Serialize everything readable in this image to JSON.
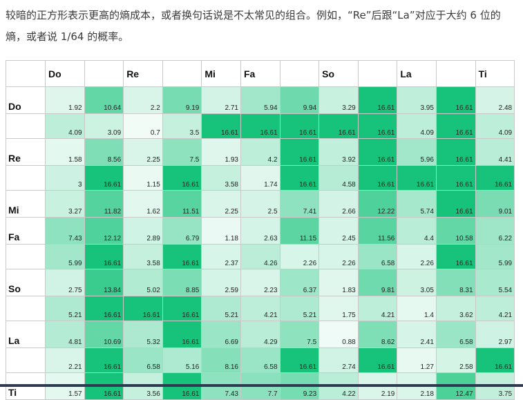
{
  "intro_text": "较暗的正方形表示更高的熵成本，或者换句话说是不太常见的组合。例如，“Re”后跟“La”对应于大约 6 位的熵，或者说 1/64 的概率。",
  "color_scale": {
    "low": "#ffffff",
    "high": "#17c37b",
    "max_value": 16.61
  },
  "chart_data": {
    "type": "heatmap",
    "title": "",
    "column_headers": [
      "Do",
      "",
      "Re",
      "",
      "Mi",
      "Fa",
      "",
      "So",
      "",
      "La",
      "",
      "Ti"
    ],
    "row_headers": [
      "Do",
      "",
      "Re",
      "",
      "Mi",
      "Fa",
      "",
      "So",
      "",
      "La",
      "",
      "Ti"
    ],
    "values": [
      [
        1.92,
        10.64,
        2.2,
        9.19,
        2.71,
        5.94,
        9.94,
        3.29,
        16.61,
        3.95,
        16.61,
        2.48
      ],
      [
        4.09,
        3.09,
        0.7,
        3.5,
        16.61,
        16.61,
        16.61,
        16.61,
        16.61,
        4.09,
        16.61,
        4.09
      ],
      [
        1.58,
        8.56,
        2.25,
        7.5,
        1.93,
        4.2,
        16.61,
        3.92,
        16.61,
        5.96,
        16.61,
        4.41
      ],
      [
        3,
        16.61,
        1.15,
        16.61,
        3.58,
        1.74,
        16.61,
        4.58,
        16.61,
        16.61,
        16.61,
        16.61
      ],
      [
        3.27,
        11.82,
        1.62,
        11.51,
        2.25,
        2.5,
        7.41,
        2.66,
        12.22,
        5.74,
        16.61,
        9.01
      ],
      [
        7.43,
        12.12,
        2.89,
        6.79,
        1.18,
        2.63,
        11.15,
        2.45,
        11.56,
        4.4,
        10.58,
        6.22
      ],
      [
        5.99,
        16.61,
        3.58,
        16.61,
        2.37,
        4.26,
        2.26,
        2.26,
        6.58,
        2.26,
        16.61,
        5.99
      ],
      [
        2.75,
        13.84,
        5.02,
        8.85,
        2.59,
        2.23,
        6.37,
        1.83,
        9.81,
        3.05,
        8.31,
        5.54
      ],
      [
        5.21,
        16.61,
        16.61,
        16.61,
        5.21,
        4.21,
        5.21,
        1.75,
        4.21,
        1.4,
        3.62,
        4.21
      ],
      [
        4.81,
        10.69,
        5.32,
        16.61,
        6.69,
        4.29,
        7.5,
        0.88,
        8.62,
        2.41,
        6.58,
        2.97
      ],
      [
        2.21,
        16.61,
        6.58,
        5.16,
        8.16,
        6.58,
        16.61,
        2.74,
        16.61,
        1.27,
        2.58,
        16.61
      ],
      [
        1.57,
        16.61,
        3.56,
        16.61,
        7.43,
        7.7,
        9.23,
        4.22,
        2.19,
        2.18,
        12.47,
        3.75
      ]
    ]
  }
}
